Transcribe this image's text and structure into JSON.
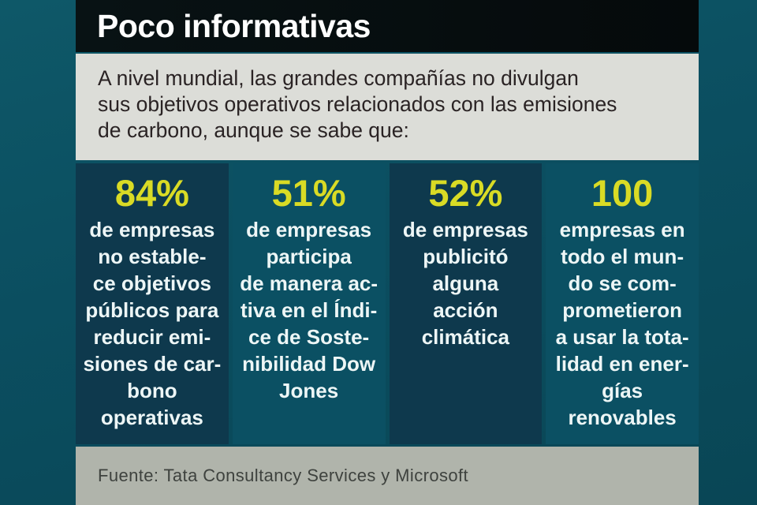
{
  "header": {
    "title": "Poco informativas"
  },
  "intro": {
    "lines": [
      "A nivel mundial, las grandes compañías no divulgan",
      "sus objetivos operativos relacionados con las emisiones",
      "de carbono, aunque se sabe que:"
    ]
  },
  "stats": [
    {
      "value": "84%",
      "lines": [
        "de empresas",
        "no estable-",
        "ce objetivos",
        "públicos para",
        "reducir emi-",
        "siones de car-",
        "bono",
        "operativas"
      ]
    },
    {
      "value": "51%",
      "lines": [
        "de empresas",
        "participa",
        "de manera ac-",
        "tiva en el Índi-",
        "ce de Soste-",
        "nibilidad Dow",
        "Jones"
      ]
    },
    {
      "value": "52%",
      "lines": [
        "de empresas",
        "publicitó",
        "alguna",
        "acción",
        "climática"
      ]
    },
    {
      "value": "100",
      "lines": [
        "empresas en",
        "todo el mun-",
        "do se com-",
        "prometieron",
        "a usar la tota-",
        "lidad en ener-",
        "gías",
        "renovables"
      ]
    }
  ],
  "footer": {
    "source": "Fuente: Tata Consultancy Services y Microsoft"
  },
  "colors": {
    "background_teal": "#0b4e60",
    "header_black": "#060c0e",
    "intro_panel_gray": "#dcddd8",
    "stat_dark_teal": "#0e394d",
    "stat_light_teal": "#0b5063",
    "accent_yellow": "#d9db25",
    "stat_text_white": "#edf6f6",
    "footer_gray": "#b0b4ab"
  },
  "chart_data": {
    "type": "table",
    "title": "Poco informativas",
    "subtitle": "A nivel mundial, las grandes compañías no divulgan sus objetivos operativos relacionados con las emisiones de carbono, aunque se sabe que:",
    "categories": [
      "de empresas no establece objetivos públicos para reducir emisiones de carbono operativas",
      "de empresas participa de manera activa en el Índice de Sostenibilidad Dow Jones",
      "de empresas publicitó alguna acción climática",
      "empresas en todo el mundo se comprometieron a usar la totalidad en energías renovables"
    ],
    "values": [
      84,
      51,
      52,
      100
    ],
    "value_labels": [
      "84%",
      "51%",
      "52%",
      "100"
    ],
    "source": "Fuente: Tata Consultancy Services y Microsoft"
  }
}
